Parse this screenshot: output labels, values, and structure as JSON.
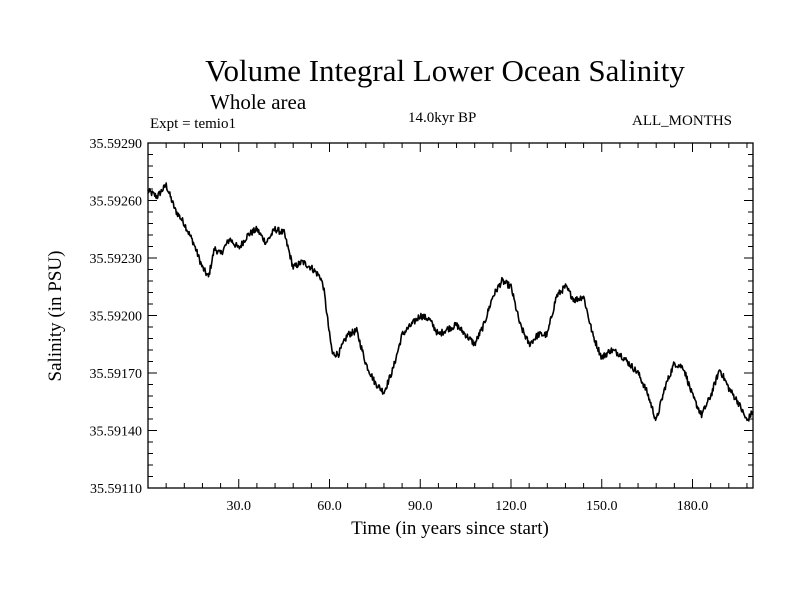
{
  "header": {
    "title": "Volume Integral Lower Ocean Salinity",
    "subtitle": "Whole area",
    "experiment": "Expt = temio1",
    "period": "14.0kyr BP",
    "months": "ALL_MONTHS"
  },
  "chart_data": {
    "type": "line",
    "title": "Volume Integral Lower Ocean Salinity",
    "subtitle": "Whole area",
    "xlabel": "Time (in years since start)",
    "ylabel": "Salinity (in PSU)",
    "xlim": [
      0,
      200
    ],
    "ylim": [
      35.5911,
      35.5929
    ],
    "x_ticks": [
      30,
      60,
      90,
      120,
      150,
      180
    ],
    "x_tick_labels": [
      "30.0",
      "60.0",
      "90.0",
      "120.0",
      "150.0",
      "180.0"
    ],
    "y_ticks": [
      35.5911,
      35.5914,
      35.5917,
      35.592,
      35.5923,
      35.5926,
      35.5929
    ],
    "y_tick_labels": [
      "35.59110",
      "35.59140",
      "35.59170",
      "35.59200",
      "35.59230",
      "35.59260",
      "35.59290"
    ],
    "grid": false,
    "series": [
      {
        "name": "Salinity",
        "x": [
          0,
          3,
          6,
          9,
          12,
          15,
          18,
          20,
          22,
          24,
          27,
          30,
          33,
          36,
          39,
          42,
          45,
          48,
          51,
          54,
          57,
          58,
          60,
          61,
          63,
          66,
          69,
          72,
          75,
          78,
          81,
          84,
          87,
          90,
          93,
          96,
          99,
          102,
          105,
          108,
          111,
          114,
          117,
          120,
          123,
          126,
          129,
          132,
          135,
          138,
          141,
          144,
          147,
          150,
          153,
          156,
          159,
          162,
          165,
          168,
          171,
          174,
          177,
          180,
          183,
          186,
          189,
          192,
          195,
          198,
          200
        ],
        "values": [
          35.59265,
          35.59262,
          35.59268,
          35.59255,
          35.59248,
          35.59238,
          35.59225,
          35.5922,
          35.59235,
          35.59232,
          35.5924,
          35.59235,
          35.59242,
          35.59245,
          35.59238,
          35.59245,
          35.59243,
          35.59225,
          35.59228,
          35.59225,
          35.5922,
          35.59215,
          35.5919,
          35.5918,
          35.5918,
          35.5919,
          35.59192,
          35.59175,
          35.59165,
          35.5916,
          35.59172,
          35.5919,
          35.59195,
          35.592,
          35.59198,
          35.5919,
          35.59193,
          35.59195,
          35.5919,
          35.59185,
          35.59195,
          35.5921,
          35.59218,
          35.59215,
          35.59195,
          35.59185,
          35.5919,
          35.5919,
          35.5921,
          35.59215,
          35.59208,
          35.5921,
          35.5919,
          35.59178,
          35.59182,
          35.5918,
          35.59175,
          35.5917,
          35.5916,
          35.59145,
          35.59163,
          35.59175,
          35.59173,
          35.59158,
          35.59148,
          35.59158,
          35.59172,
          35.59162,
          35.59155,
          35.59145,
          35.5915
        ]
      }
    ]
  }
}
